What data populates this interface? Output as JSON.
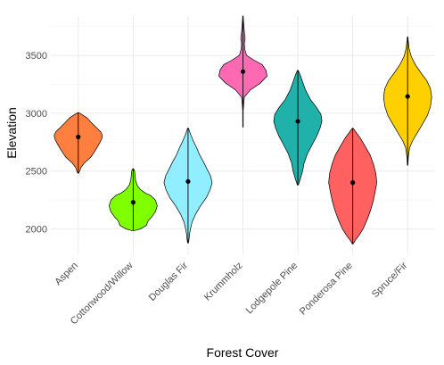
{
  "chart_data": {
    "type": "violin",
    "xlabel": "Forest Cover",
    "ylabel": "Elevation",
    "ylim": [
      1780,
      3840
    ],
    "yticks": [
      2000,
      2500,
      3000,
      3500
    ],
    "grid": true,
    "legend": "none",
    "categories": [
      "Aspen",
      "Cottonwood/Willow",
      "Douglas Fir",
      "Krummholz",
      "Lodgepole Pine",
      "Ponderosa Pine",
      "Spruce/Fir"
    ],
    "series": [
      {
        "category": "Aspen",
        "color": "#FF7F3F",
        "min": 2482,
        "max": 3005,
        "median": 2795,
        "density": [
          [
            2482,
            0.02
          ],
          [
            2500,
            0.06
          ],
          [
            2530,
            0.11
          ],
          [
            2570,
            0.25
          ],
          [
            2620,
            0.52
          ],
          [
            2660,
            0.65
          ],
          [
            2700,
            0.77
          ],
          [
            2740,
            0.88
          ],
          [
            2780,
            0.98
          ],
          [
            2810,
            1.0
          ],
          [
            2840,
            0.93
          ],
          [
            2880,
            0.73
          ],
          [
            2920,
            0.54
          ],
          [
            2960,
            0.36
          ],
          [
            2985,
            0.18
          ],
          [
            3005,
            0.02
          ]
        ]
      },
      {
        "category": "Cottonwood/Willow",
        "color": "#80FF00",
        "min": 1985,
        "max": 2520,
        "median": 2230,
        "density": [
          [
            1985,
            0.05
          ],
          [
            2000,
            0.3
          ],
          [
            2030,
            0.55
          ],
          [
            2070,
            0.62
          ],
          [
            2100,
            0.76
          ],
          [
            2150,
            0.93
          ],
          [
            2200,
            1.0
          ],
          [
            2250,
            0.92
          ],
          [
            2290,
            0.72
          ],
          [
            2310,
            0.5
          ],
          [
            2340,
            0.3
          ],
          [
            2380,
            0.16
          ],
          [
            2420,
            0.1
          ],
          [
            2460,
            0.08
          ],
          [
            2500,
            0.06
          ],
          [
            2520,
            0.02
          ]
        ]
      },
      {
        "category": "Douglas Fir",
        "color": "#90EEFF",
        "min": 1880,
        "max": 2870,
        "median": 2410,
        "density": [
          [
            1880,
            0.02
          ],
          [
            1910,
            0.04
          ],
          [
            1950,
            0.06
          ],
          [
            2000,
            0.1
          ],
          [
            2060,
            0.17
          ],
          [
            2130,
            0.32
          ],
          [
            2200,
            0.52
          ],
          [
            2270,
            0.76
          ],
          [
            2340,
            0.92
          ],
          [
            2400,
            1.0
          ],
          [
            2460,
            0.93
          ],
          [
            2520,
            0.78
          ],
          [
            2580,
            0.64
          ],
          [
            2640,
            0.48
          ],
          [
            2700,
            0.36
          ],
          [
            2760,
            0.22
          ],
          [
            2820,
            0.1
          ],
          [
            2870,
            0.02
          ]
        ]
      },
      {
        "category": "Krummholz",
        "color": "#FF69B4",
        "min": 2880,
        "max": 3840,
        "median": 3360,
        "density": [
          [
            2880,
            0.01
          ],
          [
            2950,
            0.01
          ],
          [
            3020,
            0.01
          ],
          [
            3080,
            0.03
          ],
          [
            3140,
            0.06
          ],
          [
            3200,
            0.3
          ],
          [
            3260,
            0.72
          ],
          [
            3320,
            1.0
          ],
          [
            3370,
            0.96
          ],
          [
            3420,
            0.8
          ],
          [
            3460,
            0.45
          ],
          [
            3500,
            0.15
          ],
          [
            3550,
            0.08
          ],
          [
            3600,
            0.06
          ],
          [
            3650,
            0.09
          ],
          [
            3700,
            0.06
          ],
          [
            3750,
            0.04
          ],
          [
            3800,
            0.02
          ],
          [
            3840,
            0.01
          ]
        ]
      },
      {
        "category": "Lodgepole Pine",
        "color": "#20B2AA",
        "min": 2380,
        "max": 3370,
        "median": 2930,
        "density": [
          [
            2380,
            0.02
          ],
          [
            2430,
            0.1
          ],
          [
            2500,
            0.2
          ],
          [
            2570,
            0.26
          ],
          [
            2650,
            0.4
          ],
          [
            2730,
            0.6
          ],
          [
            2800,
            0.78
          ],
          [
            2870,
            0.92
          ],
          [
            2930,
            1.0
          ],
          [
            2990,
            0.96
          ],
          [
            3050,
            0.78
          ],
          [
            3120,
            0.52
          ],
          [
            3200,
            0.32
          ],
          [
            3270,
            0.2
          ],
          [
            3330,
            0.1
          ],
          [
            3370,
            0.02
          ]
        ]
      },
      {
        "category": "Ponderosa Pine",
        "color": "#FF6060",
        "min": 1870,
        "max": 2870,
        "median": 2400,
        "density": [
          [
            1870,
            0.02
          ],
          [
            1900,
            0.1
          ],
          [
            1950,
            0.28
          ],
          [
            2000,
            0.43
          ],
          [
            2080,
            0.6
          ],
          [
            2160,
            0.74
          ],
          [
            2240,
            0.85
          ],
          [
            2320,
            0.93
          ],
          [
            2400,
            1.0
          ],
          [
            2480,
            0.96
          ],
          [
            2560,
            0.86
          ],
          [
            2640,
            0.72
          ],
          [
            2720,
            0.5
          ],
          [
            2790,
            0.3
          ],
          [
            2840,
            0.12
          ],
          [
            2870,
            0.02
          ]
        ]
      },
      {
        "category": "Spruce/Fir",
        "color": "#FFD000",
        "min": 2550,
        "max": 3660,
        "median": 3145,
        "density": [
          [
            2550,
            0.01
          ],
          [
            2620,
            0.03
          ],
          [
            2700,
            0.08
          ],
          [
            2760,
            0.2
          ],
          [
            2830,
            0.4
          ],
          [
            2900,
            0.6
          ],
          [
            2980,
            0.82
          ],
          [
            3060,
            0.95
          ],
          [
            3140,
            1.0
          ],
          [
            3210,
            0.95
          ],
          [
            3280,
            0.8
          ],
          [
            3350,
            0.55
          ],
          [
            3420,
            0.32
          ],
          [
            3490,
            0.15
          ],
          [
            3560,
            0.06
          ],
          [
            3620,
            0.03
          ],
          [
            3660,
            0.01
          ]
        ]
      }
    ]
  }
}
